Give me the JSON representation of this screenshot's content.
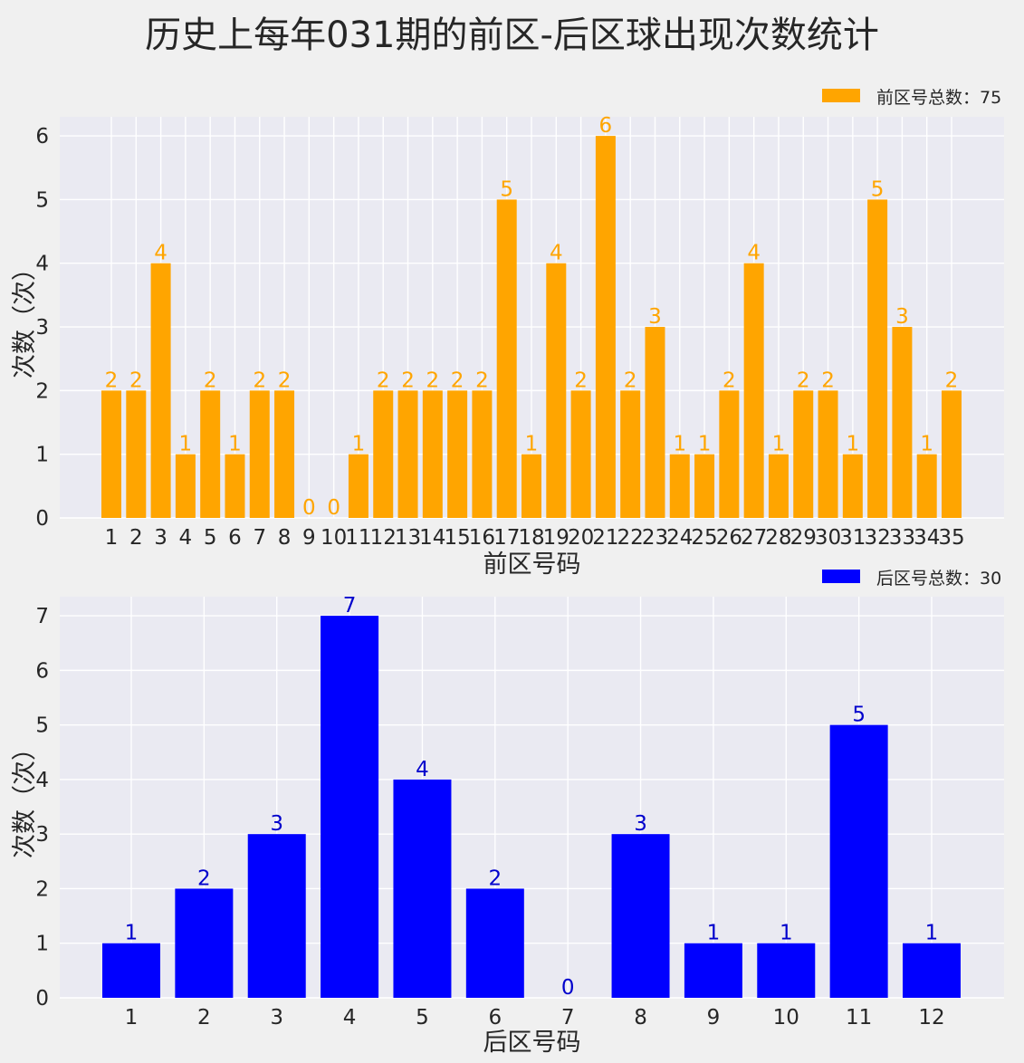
{
  "figure_title": "历史上每年031期的前区-后区球出现次数统计",
  "chart_data": [
    {
      "type": "bar",
      "id": "front",
      "title": "",
      "xlabel": "前区号码",
      "ylabel": "次数（次）",
      "legend": "前区号总数：75",
      "legend_position": "top-right",
      "color": "#ffa500",
      "label_color": "#ffa500",
      "grid": true,
      "categories": [
        "1",
        "2",
        "3",
        "4",
        "5",
        "6",
        "7",
        "8",
        "9",
        "10",
        "11",
        "12",
        "13",
        "14",
        "15",
        "16",
        "17",
        "18",
        "19",
        "20",
        "21",
        "22",
        "23",
        "24",
        "25",
        "26",
        "27",
        "28",
        "29",
        "30",
        "31",
        "32",
        "33",
        "34",
        "35"
      ],
      "values": [
        2,
        2,
        4,
        1,
        2,
        1,
        2,
        2,
        0,
        0,
        1,
        2,
        2,
        2,
        2,
        2,
        5,
        1,
        4,
        2,
        6,
        2,
        3,
        1,
        1,
        2,
        4,
        1,
        2,
        2,
        1,
        5,
        3,
        1,
        2
      ],
      "ylim": [
        0,
        6.3
      ],
      "yticks": [
        0,
        1,
        2,
        3,
        4,
        5,
        6
      ]
    },
    {
      "type": "bar",
      "id": "back",
      "title": "",
      "xlabel": "后区号码",
      "ylabel": "次数（次）",
      "legend": "后区号总数：30",
      "legend_position": "top-right",
      "color": "#0000ff",
      "label_color": "#0000cc",
      "grid": true,
      "categories": [
        "1",
        "2",
        "3",
        "4",
        "5",
        "6",
        "7",
        "8",
        "9",
        "10",
        "11",
        "12"
      ],
      "values": [
        1,
        2,
        3,
        7,
        4,
        2,
        0,
        3,
        1,
        1,
        5,
        1
      ],
      "ylim": [
        0,
        7.35
      ],
      "yticks": [
        0,
        1,
        2,
        3,
        4,
        5,
        6,
        7
      ]
    }
  ]
}
